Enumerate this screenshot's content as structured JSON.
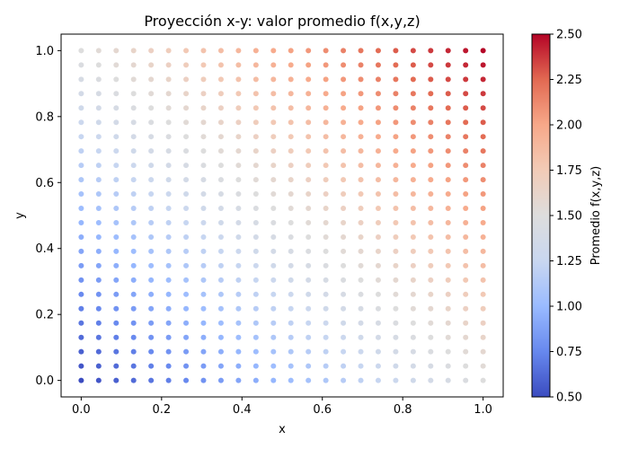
{
  "chart_data": {
    "type": "scatter",
    "title": "Proyección x-y: valor promedio f(x,y,z)",
    "xlabel": "x",
    "ylabel": "y",
    "xlim": [
      -0.05,
      1.05
    ],
    "ylim": [
      -0.05,
      1.05
    ],
    "xticks": [
      0.0,
      0.2,
      0.4,
      0.6,
      0.8,
      1.0
    ],
    "xtick_labels": [
      "0.0",
      "0.2",
      "0.4",
      "0.6",
      "0.8",
      "1.0"
    ],
    "yticks": [
      0.0,
      0.2,
      0.4,
      0.6,
      0.8,
      1.0
    ],
    "ytick_labels": [
      "0.0",
      "0.2",
      "0.4",
      "0.6",
      "0.8",
      "1.0"
    ],
    "grid": false,
    "points": {
      "x_values": [
        0.0,
        0.0435,
        0.087,
        0.1304,
        0.1739,
        0.2174,
        0.2609,
        0.3043,
        0.3478,
        0.3913,
        0.4348,
        0.4783,
        0.5217,
        0.5652,
        0.6087,
        0.6522,
        0.6957,
        0.7391,
        0.7826,
        0.8261,
        0.8696,
        0.913,
        0.9565,
        1.0
      ],
      "y_values": [
        0.0,
        0.0435,
        0.087,
        0.1304,
        0.1739,
        0.2174,
        0.2609,
        0.3043,
        0.3478,
        0.3913,
        0.4348,
        0.4783,
        0.5217,
        0.5652,
        0.6087,
        0.6522,
        0.6957,
        0.7391,
        0.7826,
        0.8261,
        0.8696,
        0.913,
        0.9565,
        1.0
      ],
      "value_rule": "f = 0.5 + 1.0*x + 1.0*y"
    },
    "colorbar": {
      "label": "Promedio f(x,y,z)",
      "colormap": "coolwarm",
      "range": [
        0.5,
        2.5
      ],
      "ticks": [
        0.5,
        0.75,
        1.0,
        1.25,
        1.5,
        1.75,
        2.0,
        2.25,
        2.5
      ],
      "tick_labels": [
        "0.50",
        "0.75",
        "1.00",
        "1.25",
        "1.50",
        "1.75",
        "2.00",
        "2.25",
        "2.50"
      ],
      "colors": [
        "#3b4cc0",
        "#6788ee",
        "#9abbff",
        "#c9d7f0",
        "#dddddd",
        "#f2cbb7",
        "#f7a889",
        "#e26952",
        "#b40426"
      ]
    }
  }
}
